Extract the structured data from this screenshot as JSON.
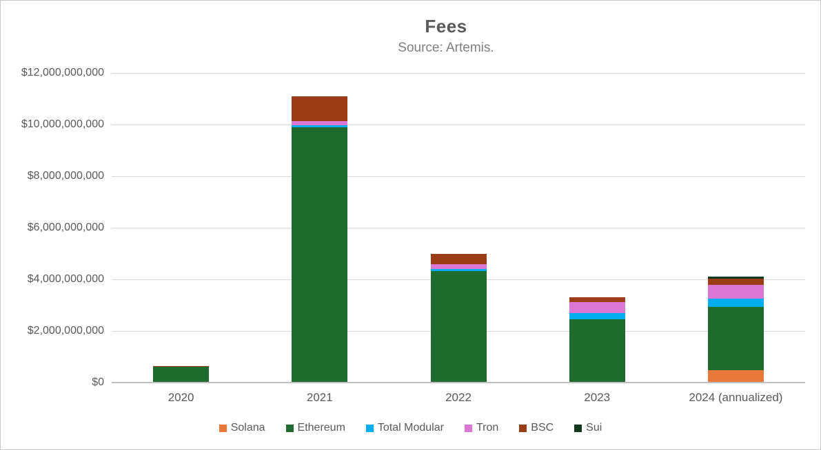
{
  "chart": {
    "title": "Fees",
    "subtitle": "Source: Artemis."
  },
  "chart_data": {
    "type": "bar",
    "stacked": true,
    "title": "Fees",
    "subtitle": "Source: Artemis.",
    "xlabel": "",
    "ylabel": "",
    "ylim": [
      0,
      12000000000
    ],
    "grid": true,
    "legend_position": "bottom",
    "categories": [
      "2020",
      "2021",
      "2022",
      "2023",
      "2024 (annualized)"
    ],
    "y_ticks": [
      {
        "value": 0,
        "label": "$0"
      },
      {
        "value": 2000000000,
        "label": "$2,000,000,000"
      },
      {
        "value": 4000000000,
        "label": "$4,000,000,000"
      },
      {
        "value": 6000000000,
        "label": "$6,000,000,000"
      },
      {
        "value": 8000000000,
        "label": "$8,000,000,000"
      },
      {
        "value": 10000000000,
        "label": "$10,000,000,000"
      },
      {
        "value": 12000000000,
        "label": "$12,000,000,000"
      }
    ],
    "series": [
      {
        "name": "Solana",
        "color": "#E8793A",
        "values": [
          0,
          0,
          0,
          0,
          450000000
        ]
      },
      {
        "name": "Ethereum",
        "color": "#1E6B2D",
        "values": [
          580000000,
          9870000000,
          4300000000,
          2430000000,
          2460000000
        ]
      },
      {
        "name": "Total Modular",
        "color": "#00AEEF",
        "values": [
          0,
          80000000,
          80000000,
          240000000,
          320000000
        ]
      },
      {
        "name": "Tron",
        "color": "#DB76D4",
        "values": [
          0,
          165000000,
          190000000,
          430000000,
          530000000
        ]
      },
      {
        "name": "BSC",
        "color": "#9B3D16",
        "values": [
          45000000,
          960000000,
          400000000,
          190000000,
          230000000
        ]
      },
      {
        "name": "Sui",
        "color": "#12391C",
        "values": [
          0,
          0,
          0,
          0,
          95000000
        ]
      }
    ]
  }
}
